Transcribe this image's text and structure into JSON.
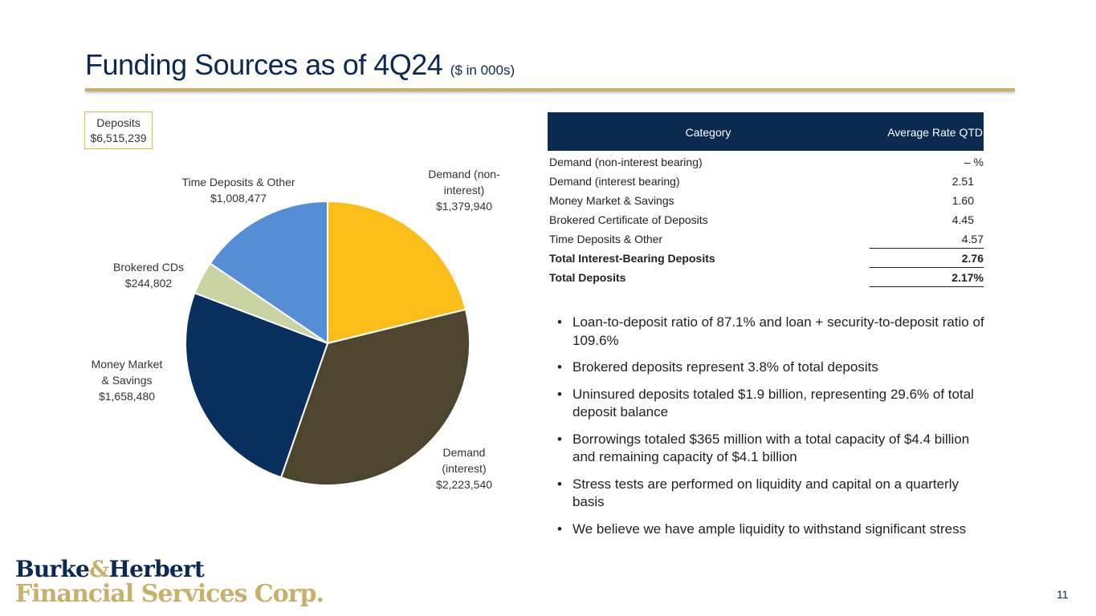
{
  "title": "Funding Sources as of 4Q24",
  "title_sub": "($ in 000s)",
  "deposits_box": {
    "line1": "Deposits",
    "line2": "$6,515,239"
  },
  "chart_data": {
    "type": "pie",
    "title": "Deposits",
    "total": 6515239,
    "slices": [
      {
        "name": "Demand (non-interest)",
        "label_lines": [
          "Demand (non-",
          "interest)",
          "$1,379,940"
        ],
        "value": 1379940,
        "color": "#fbbd1a"
      },
      {
        "name": "Demand (interest)",
        "label_lines": [
          "Demand",
          "(interest)",
          "$2,223,540"
        ],
        "value": 2223540,
        "color": "#4e452e"
      },
      {
        "name": "Money Market & Savings",
        "label_lines": [
          "Money Market",
          "& Savings",
          "$1,658,480"
        ],
        "value": 1658480,
        "color": "#07305e"
      },
      {
        "name": "Brokered CDs",
        "label_lines": [
          "Brokered CDs",
          "$244,802"
        ],
        "value": 244802,
        "color": "#c9d4a2"
      },
      {
        "name": "Time Deposits & Other",
        "label_lines": [
          "Time Deposits & Other",
          "$1,008,477"
        ],
        "value": 1008477,
        "color": "#568ed5"
      }
    ]
  },
  "table": {
    "headers": [
      "Category",
      "Average Rate QTD"
    ],
    "rows": [
      {
        "category": "Demand (non-interest bearing)",
        "rate": "– %"
      },
      {
        "category": "Demand (interest bearing)",
        "rate": "2.51"
      },
      {
        "category": "Money Market & Savings",
        "rate": "1.60"
      },
      {
        "category": "Brokered Certificate of Deposits",
        "rate": "4.45"
      },
      {
        "category": "Time Deposits & Other",
        "rate": "4.57"
      },
      {
        "category": "Total Interest-Bearing Deposits",
        "rate": "2.76"
      },
      {
        "category": "Total Deposits",
        "rate": "2.17%"
      }
    ]
  },
  "bullets": [
    "Loan-to-deposit ratio of 87.1% and loan + security-to-deposit ratio of 109.6%",
    "Brokered deposits represent 3.8% of total deposits",
    "Uninsured deposits totaled $1.9 billion, representing 29.6% of total deposit balance",
    "Borrowings totaled $365 million with a total capacity of $4.4 billion and remaining capacity of $4.1 billion",
    "Stress tests are performed on liquidity and capital on a quarterly basis",
    "We believe we have ample liquidity to withstand significant stress"
  ],
  "logo": {
    "part1": "Burke",
    "amp": "&",
    "part2": "Herbert",
    "line2": "Financial Services Corp."
  },
  "page_number": "11",
  "colors": {
    "navy": "#0a2a55",
    "gold": "#c8b06a"
  }
}
